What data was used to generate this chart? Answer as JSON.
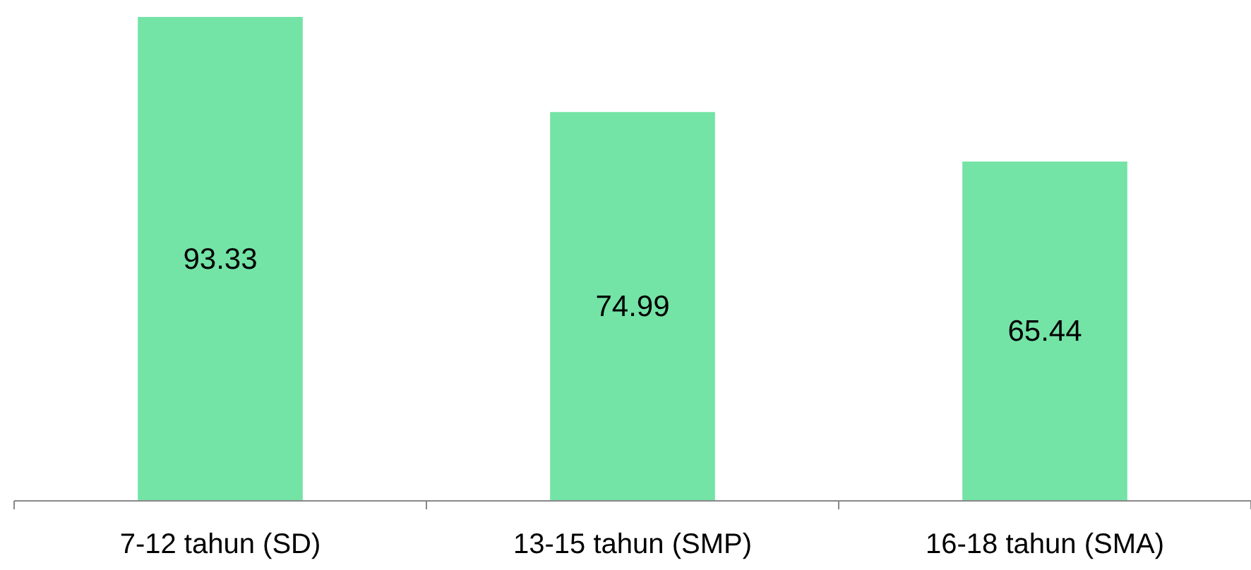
{
  "chart_data": {
    "type": "bar",
    "categories": [
      "7-12 tahun (SD)",
      "13-15 tahun (SMP)",
      "16-18 tahun (SMA)"
    ],
    "values": [
      93.33,
      74.99,
      65.44
    ],
    "color": "#74e3a6",
    "data_labels": true
  }
}
